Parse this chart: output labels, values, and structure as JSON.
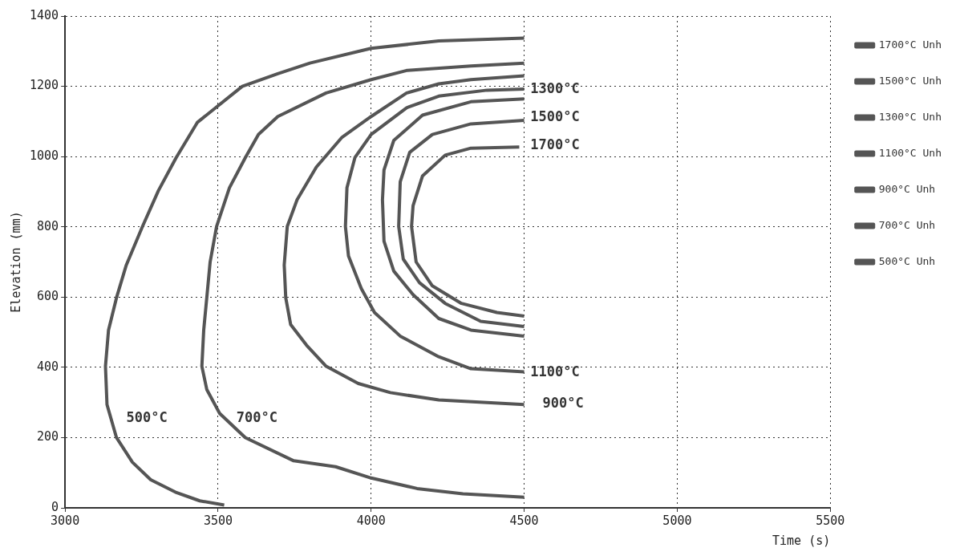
{
  "chart_data": {
    "type": "line",
    "xlabel": "Time (s)",
    "ylabel": "Elevation (mm)",
    "xlim": [
      3000,
      5500
    ],
    "ylim": [
      0,
      1400
    ],
    "xticks": [
      3000,
      3500,
      4000,
      4500,
      5000,
      5500
    ],
    "yticks": [
      0,
      200,
      400,
      600,
      800,
      1000,
      1200,
      1400
    ],
    "grid": true,
    "legend": "right",
    "marker": "none",
    "line_style": "solid",
    "series": [
      {
        "name": "1700°C Unh",
        "color": "#555555",
        "x": [
          4484,
          4326,
          4242,
          4168,
          4137,
          4132,
          4147,
          4200,
          4295,
          4411,
          4500
        ],
        "values": [
          1027,
          1024,
          1004,
          945,
          860,
          801,
          700,
          632,
          582,
          556,
          546
        ]
      },
      {
        "name": "1500°C Unh",
        "color": "#555555",
        "x": [
          4500,
          4326,
          4200,
          4126,
          4095,
          4090,
          4105,
          4158,
          4242,
          4358,
          4500
        ],
        "values": [
          1103,
          1093,
          1063,
          1012,
          928,
          801,
          708,
          641,
          582,
          531,
          516
        ]
      },
      {
        "name": "1300°C Unh",
        "color": "#555555",
        "x": [
          4500,
          4326,
          4168,
          4074,
          4042,
          4037,
          4042,
          4074,
          4137,
          4221,
          4326,
          4500
        ],
        "values": [
          1164,
          1156,
          1118,
          1046,
          962,
          877,
          759,
          674,
          607,
          539,
          506,
          489
        ]
      },
      {
        "name": "1100°C Unh",
        "color": "#555555",
        "x": [
          4500,
          4379,
          4221,
          4116,
          4000,
          3947,
          3921,
          3916,
          3926,
          3968,
          4011,
          4095,
          4221,
          4326,
          4500
        ],
        "values": [
          1192,
          1189,
          1172,
          1139,
          1063,
          997,
          911,
          801,
          717,
          624,
          556,
          489,
          430,
          396,
          387
        ]
      },
      {
        "name": "900°C Unh",
        "color": "#555555",
        "x": [
          4500,
          4326,
          4221,
          4116,
          4000,
          3905,
          3821,
          3758,
          3726,
          3716,
          3721,
          3737,
          3789,
          3853,
          3958,
          4063,
          4221,
          4500
        ],
        "values": [
          1230,
          1219,
          1207,
          1181,
          1114,
          1055,
          970,
          877,
          801,
          691,
          598,
          522,
          463,
          403,
          354,
          328,
          307,
          294
        ]
      },
      {
        "name": "700°C Unh",
        "color": "#555555",
        "x": [
          4500,
          4326,
          4116,
          4000,
          3853,
          3695,
          3632,
          3589,
          3537,
          3495,
          3474,
          3463,
          3453,
          3447,
          3463,
          3505,
          3589,
          3747,
          3884,
          4000,
          4150,
          4300,
          4500
        ],
        "values": [
          1266,
          1258,
          1245,
          1219,
          1181,
          1114,
          1063,
          997,
          911,
          801,
          700,
          598,
          506,
          403,
          337,
          269,
          200,
          134,
          117,
          85,
          55,
          40,
          30
        ]
      },
      {
        "name": "500°C Unh",
        "color": "#555555",
        "x": [
          4500,
          4221,
          4000,
          3800,
          3695,
          3579,
          3432,
          3363,
          3305,
          3253,
          3200,
          3168,
          3142,
          3132,
          3137,
          3168,
          3220,
          3280,
          3360,
          3440,
          3520
        ],
        "values": [
          1337,
          1329,
          1308,
          1266,
          1236,
          1200,
          1097,
          997,
          903,
          801,
          691,
          598,
          506,
          403,
          294,
          200,
          130,
          80,
          45,
          20,
          8
        ]
      }
    ],
    "annotations": [
      "1300°C",
      "1500°C",
      "1700°C",
      "1100°C",
      "900°C",
      "500°C",
      "700°C"
    ]
  }
}
